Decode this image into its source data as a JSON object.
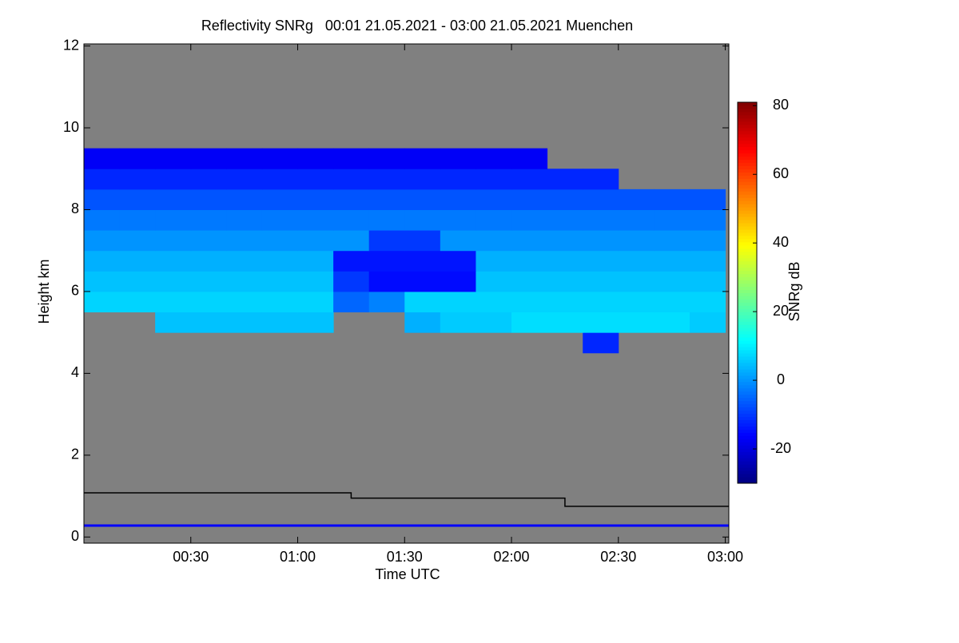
{
  "chart_data": {
    "type": "heatmap",
    "title": "Reflectivity SNRg   00:01 21.05.2021 - 03:00 21.05.2021 Muenchen",
    "xlabel": "Time UTC",
    "ylabel": "Height km",
    "colorbar_label": "SNRg dB",
    "colormap": "jet",
    "background": "#808080",
    "xlim": [
      0,
      181
    ],
    "xticks": [
      {
        "value": 30,
        "label": "00:30"
      },
      {
        "value": 60,
        "label": "01:00"
      },
      {
        "value": 90,
        "label": "01:30"
      },
      {
        "value": 120,
        "label": "02:00"
      },
      {
        "value": 150,
        "label": "02:30"
      },
      {
        "value": 180,
        "label": "03:00"
      }
    ],
    "ylim": [
      -0.15,
      12.05
    ],
    "yticks": [
      0,
      2,
      4,
      6,
      8,
      10,
      12
    ],
    "clim": [
      -30,
      81
    ],
    "cticks": [
      -20,
      0,
      20,
      40,
      60,
      80
    ],
    "x_edges": [
      0,
      10,
      20,
      30,
      40,
      50,
      60,
      70,
      80,
      90,
      100,
      110,
      120,
      130,
      140,
      150,
      160,
      170,
      180
    ],
    "y_edges": [
      4.5,
      5,
      5.5,
      6,
      6.5,
      7,
      7.5,
      8,
      8.5,
      9,
      9.5
    ],
    "z": [
      [
        null,
        null,
        null,
        null,
        null,
        null,
        null,
        null,
        null,
        null,
        null,
        null,
        null,
        null,
        -12,
        null,
        null,
        null
      ],
      [
        null,
        null,
        5,
        5,
        5,
        5,
        5,
        null,
        null,
        3,
        6,
        6,
        8,
        8,
        8,
        8,
        8,
        6
      ],
      [
        7,
        7,
        7,
        7,
        7,
        7,
        7,
        -5,
        -2,
        7,
        7,
        7,
        7,
        7,
        7,
        7,
        7,
        7
      ],
      [
        5,
        5,
        5,
        5,
        5,
        5,
        5,
        -10,
        -15,
        -15,
        -15,
        5,
        5,
        5,
        5,
        5,
        5,
        5
      ],
      [
        3,
        3,
        3,
        3,
        3,
        3,
        3,
        -14,
        -14,
        -14,
        -14,
        3,
        3,
        3,
        3,
        3,
        3,
        3
      ],
      [
        0,
        0,
        0,
        0,
        0,
        0,
        0,
        0,
        -10,
        -10,
        0,
        0,
        0,
        0,
        0,
        0,
        0,
        0
      ],
      [
        -3,
        -3,
        -3,
        -3,
        -3,
        -3,
        -3,
        -3,
        -3,
        -3,
        -3,
        -3,
        -3,
        -3,
        -3,
        -3,
        -3,
        -3
      ],
      [
        -7,
        -7,
        -7,
        -7,
        -7,
        -7,
        -7,
        -7,
        -7,
        -7,
        -7,
        -7,
        -7,
        -7,
        -7,
        -7,
        -7,
        -7
      ],
      [
        -12,
        -12,
        -12,
        -12,
        -12,
        -12,
        -12,
        -12,
        -12,
        -12,
        -12,
        -12,
        -12,
        -12,
        -12,
        null,
        null,
        null
      ],
      [
        -17,
        -17,
        -17,
        -17,
        -17,
        -17,
        -17,
        -17,
        -17,
        -17,
        -17,
        -17,
        -17,
        null,
        null,
        null,
        null,
        null
      ]
    ],
    "series": [
      {
        "color": "#000000",
        "x": [
          0,
          75,
          75,
          135,
          135,
          181
        ],
        "values": [
          1.08,
          1.08,
          0.95,
          0.95,
          0.75,
          0.75
        ]
      },
      {
        "color": "#0000ff",
        "x": [
          0,
          181
        ],
        "values": [
          0.28,
          0.28
        ]
      }
    ]
  }
}
